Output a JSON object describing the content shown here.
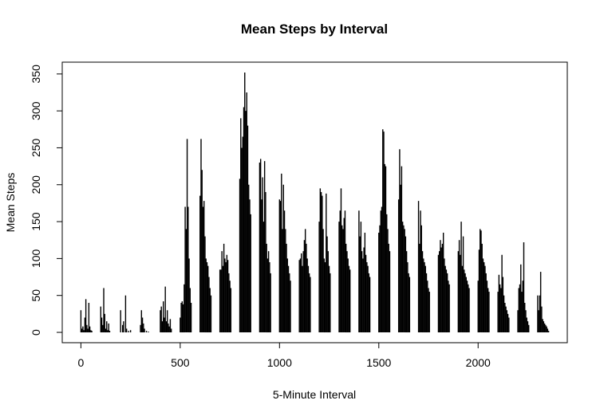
{
  "chart_data": {
    "type": "bar",
    "title": "Mean Steps by Interval",
    "x_label": "5-Minute Interval",
    "y_label": "Mean Steps",
    "color": "#000000",
    "x": [
      0,
      5,
      10,
      15,
      20,
      25,
      30,
      35,
      40,
      45,
      50,
      55,
      100,
      105,
      110,
      115,
      120,
      125,
      130,
      135,
      140,
      145,
      150,
      155,
      200,
      205,
      210,
      215,
      220,
      225,
      230,
      235,
      240,
      245,
      250,
      255,
      300,
      305,
      310,
      315,
      320,
      325,
      330,
      335,
      340,
      345,
      350,
      355,
      400,
      405,
      410,
      415,
      420,
      425,
      430,
      435,
      440,
      445,
      450,
      455,
      500,
      505,
      510,
      515,
      520,
      525,
      530,
      535,
      540,
      545,
      550,
      555,
      600,
      605,
      610,
      615,
      620,
      625,
      630,
      635,
      640,
      645,
      650,
      655,
      700,
      705,
      710,
      715,
      720,
      725,
      730,
      735,
      740,
      745,
      750,
      755,
      800,
      805,
      810,
      815,
      820,
      825,
      830,
      835,
      840,
      845,
      850,
      855,
      900,
      905,
      910,
      915,
      920,
      925,
      930,
      935,
      940,
      945,
      950,
      955,
      1000,
      1005,
      1010,
      1015,
      1020,
      1025,
      1030,
      1035,
      1040,
      1045,
      1050,
      1055,
      1100,
      1105,
      1110,
      1115,
      1120,
      1125,
      1130,
      1135,
      1140,
      1145,
      1150,
      1155,
      1200,
      1205,
      1210,
      1215,
      1220,
      1225,
      1230,
      1235,
      1240,
      1245,
      1250,
      1255,
      1300,
      1305,
      1310,
      1315,
      1320,
      1325,
      1330,
      1335,
      1340,
      1345,
      1350,
      1355,
      1400,
      1405,
      1410,
      1415,
      1420,
      1425,
      1430,
      1435,
      1440,
      1445,
      1450,
      1455,
      1500,
      1505,
      1510,
      1515,
      1520,
      1525,
      1530,
      1535,
      1540,
      1545,
      1550,
      1555,
      1600,
      1605,
      1610,
      1615,
      1620,
      1625,
      1630,
      1635,
      1640,
      1645,
      1650,
      1655,
      1700,
      1705,
      1710,
      1715,
      1720,
      1725,
      1730,
      1735,
      1740,
      1745,
      1750,
      1755,
      1800,
      1805,
      1810,
      1815,
      1820,
      1825,
      1830,
      1835,
      1840,
      1845,
      1850,
      1855,
      1900,
      1905,
      1910,
      1915,
      1920,
      1925,
      1930,
      1935,
      1940,
      1945,
      1950,
      1955,
      2000,
      2005,
      2010,
      2015,
      2020,
      2025,
      2030,
      2035,
      2040,
      2045,
      2050,
      2055,
      2100,
      2105,
      2110,
      2115,
      2120,
      2125,
      2130,
      2135,
      2140,
      2145,
      2150,
      2155,
      2200,
      2205,
      2210,
      2215,
      2220,
      2225,
      2230,
      2235,
      2240,
      2245,
      2250,
      2255,
      2300,
      2305,
      2310,
      2315,
      2320,
      2325,
      2330,
      2335,
      2340,
      2345,
      2350,
      2355
    ],
    "values": [
      30,
      5,
      8,
      3,
      20,
      45,
      10,
      5,
      40,
      8,
      3,
      2,
      35,
      20,
      10,
      60,
      25,
      5,
      15,
      3,
      12,
      2,
      0,
      0,
      30,
      0,
      10,
      15,
      0,
      50,
      5,
      0,
      2,
      0,
      3,
      0,
      10,
      30,
      20,
      12,
      5,
      0,
      2,
      0,
      1,
      0,
      0,
      0,
      30,
      35,
      15,
      42,
      20,
      62,
      15,
      30,
      12,
      8,
      18,
      5,
      20,
      40,
      42,
      38,
      65,
      170,
      140,
      262,
      170,
      100,
      60,
      40,
      185,
      262,
      220,
      170,
      178,
      130,
      100,
      95,
      90,
      75,
      60,
      50,
      85,
      85,
      110,
      90,
      120,
      100,
      95,
      105,
      98,
      80,
      70,
      60,
      208,
      290,
      250,
      265,
      305,
      352,
      300,
      325,
      280,
      200,
      180,
      160,
      230,
      235,
      180,
      210,
      150,
      232,
      190,
      120,
      100,
      110,
      95,
      80,
      180,
      178,
      215,
      140,
      200,
      165,
      140,
      120,
      100,
      90,
      80,
      70,
      98,
      100,
      107,
      90,
      110,
      125,
      140,
      120,
      100,
      90,
      80,
      75,
      150,
      195,
      190,
      185,
      140,
      100,
      95,
      188,
      130,
      110,
      90,
      80,
      150,
      165,
      195,
      145,
      140,
      155,
      165,
      120,
      110,
      100,
      90,
      85,
      165,
      130,
      150,
      110,
      100,
      115,
      135,
      105,
      95,
      90,
      80,
      75,
      135,
      145,
      165,
      170,
      275,
      272,
      228,
      225,
      160,
      140,
      120,
      110,
      180,
      248,
      200,
      225,
      150,
      145,
      140,
      130,
      110,
      95,
      80,
      75,
      178,
      120,
      165,
      145,
      110,
      100,
      95,
      90,
      80,
      70,
      60,
      55,
      105,
      110,
      125,
      115,
      120,
      135,
      100,
      90,
      85,
      80,
      70,
      65,
      110,
      125,
      105,
      150,
      90,
      130,
      85,
      80,
      75,
      70,
      65,
      60,
      70,
      112,
      140,
      138,
      120,
      100,
      95,
      90,
      80,
      70,
      60,
      55,
      55,
      78,
      65,
      60,
      105,
      75,
      50,
      40,
      35,
      30,
      25,
      20,
      30,
      60,
      65,
      92,
      55,
      70,
      122,
      40,
      30,
      20,
      15,
      10,
      50,
      30,
      50,
      82,
      35,
      18,
      15,
      12,
      10,
      8,
      5,
      2
    ],
    "xlim": [
      -94,
      2449
    ],
    "ylim": [
      -14,
      366
    ],
    "xticks": [
      0,
      500,
      1000,
      1500,
      2000
    ],
    "yticks": [
      0,
      50,
      100,
      150,
      200,
      250,
      300,
      350
    ]
  }
}
